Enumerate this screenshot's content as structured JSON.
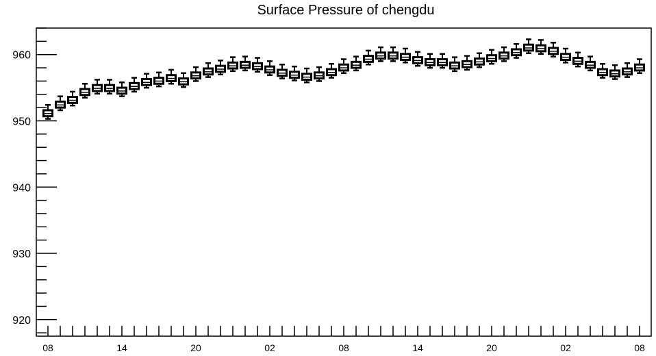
{
  "chart_data": {
    "type": "box",
    "title": "Surface Pressure of chengdu",
    "xlabel": "",
    "ylabel": "",
    "ylim": [
      917.5,
      964
    ],
    "yticks": [
      920,
      930,
      940,
      950,
      960
    ],
    "xtick_labels": [
      "08",
      "14",
      "20",
      "02",
      "08",
      "14",
      "20",
      "02",
      "08"
    ],
    "x_label_every": 6,
    "grid": false,
    "box_fill": "#ffffff",
    "box_stroke": "#000000",
    "series": [
      {
        "medians": [
          951.1,
          952.4,
          953.1,
          954.3,
          954.9,
          954.9,
          954.5,
          955.2,
          955.8,
          956.0,
          956.4,
          955.9,
          956.8,
          957.4,
          957.8,
          958.3,
          958.4,
          958.2,
          957.7,
          957.2,
          956.9,
          956.6,
          956.8,
          957.3,
          958.0,
          958.4,
          959.3,
          959.8,
          959.8,
          959.6,
          959.1,
          958.8,
          958.8,
          958.3,
          958.5,
          958.9,
          959.4,
          959.8,
          960.3,
          961.0,
          960.9,
          960.5,
          959.6,
          959.0,
          958.4,
          957.3,
          957.1,
          957.4,
          958.0
        ],
        "q1": [
          950.7,
          952.0,
          952.7,
          953.9,
          954.5,
          954.5,
          954.1,
          954.8,
          955.4,
          955.6,
          956.0,
          955.5,
          956.4,
          957.0,
          957.4,
          957.9,
          958.0,
          957.8,
          957.3,
          956.8,
          956.5,
          956.2,
          956.4,
          956.9,
          957.6,
          958.0,
          958.9,
          959.4,
          959.4,
          959.2,
          958.7,
          958.4,
          958.4,
          957.9,
          958.1,
          958.5,
          959.0,
          959.4,
          959.9,
          960.6,
          960.5,
          960.1,
          959.2,
          958.6,
          958.0,
          956.9,
          956.7,
          957.0,
          957.6
        ],
        "q3": [
          951.6,
          952.9,
          953.6,
          954.8,
          955.4,
          955.4,
          955.0,
          955.7,
          956.3,
          956.5,
          956.9,
          956.4,
          957.3,
          957.9,
          958.3,
          958.8,
          958.9,
          958.7,
          958.2,
          957.7,
          957.4,
          957.1,
          957.3,
          957.8,
          958.5,
          958.9,
          959.8,
          960.3,
          960.3,
          960.1,
          959.6,
          959.3,
          959.3,
          958.8,
          959.0,
          959.4,
          959.9,
          960.3,
          960.8,
          961.5,
          961.4,
          961.0,
          960.1,
          959.5,
          958.9,
          957.8,
          957.6,
          957.9,
          958.5
        ],
        "whisker_low": [
          950.3,
          951.6,
          952.3,
          953.5,
          954.1,
          954.1,
          953.7,
          954.4,
          955.0,
          955.2,
          955.6,
          955.1,
          956.0,
          956.6,
          957.0,
          957.5,
          957.6,
          957.4,
          956.9,
          956.4,
          956.1,
          955.8,
          956.0,
          956.5,
          957.2,
          957.6,
          958.5,
          959.0,
          959.0,
          958.8,
          958.3,
          958.0,
          958.0,
          957.5,
          957.7,
          958.1,
          958.6,
          959.0,
          959.5,
          960.2,
          960.1,
          959.7,
          958.8,
          958.2,
          957.6,
          956.5,
          956.3,
          956.6,
          957.2
        ],
        "whisker_high": [
          952.4,
          953.7,
          954.4,
          955.6,
          956.2,
          956.2,
          955.8,
          956.5,
          957.1,
          957.3,
          957.7,
          957.2,
          958.1,
          958.7,
          959.1,
          959.6,
          959.7,
          959.5,
          959.0,
          958.5,
          958.2,
          957.9,
          958.1,
          958.6,
          959.3,
          959.7,
          960.6,
          961.1,
          961.1,
          960.9,
          960.4,
          960.1,
          960.1,
          959.6,
          959.8,
          960.2,
          960.7,
          961.1,
          961.6,
          962.3,
          962.2,
          961.8,
          960.9,
          960.3,
          959.7,
          958.6,
          958.4,
          958.7,
          959.3
        ]
      }
    ]
  }
}
